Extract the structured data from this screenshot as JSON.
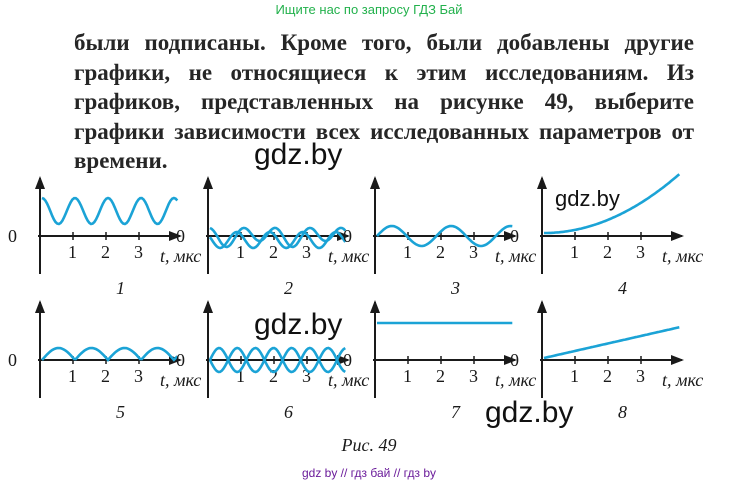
{
  "header": {
    "search_link": "Ищите нас по запросу ГДЗ Бай"
  },
  "text": {
    "paragraph": "были подписаны. Кроме того, были добавлены другие графики, не относящиеся к этим исследованиям. Из графиков, представленных на рисунке 49, выберите графики зависимости всех исследованных параметров от времени."
  },
  "watermarks": [
    "gdz.by",
    "gdz.by",
    "gdz.by",
    "gdz.by"
  ],
  "figure": {
    "caption": "Рис. 49",
    "axis_origin": "0",
    "time_ticks": [
      "1",
      "2",
      "3"
    ],
    "time_axis_label": "t, мкс",
    "line_color": "#1ba3d6",
    "graphs": [
      {
        "number": "1",
        "shape": "sine-offset-up"
      },
      {
        "number": "2",
        "shape": "damped-oscillation"
      },
      {
        "number": "3",
        "shape": "sine"
      },
      {
        "number": "4",
        "shape": "parabola"
      },
      {
        "number": "5",
        "shape": "half-wave-positive"
      },
      {
        "number": "6",
        "shape": "two-sines"
      },
      {
        "number": "7",
        "shape": "constant"
      },
      {
        "number": "8",
        "shape": "linear"
      }
    ]
  },
  "footer": {
    "links": "gdz by  // гдз бай  // гдз by"
  }
}
